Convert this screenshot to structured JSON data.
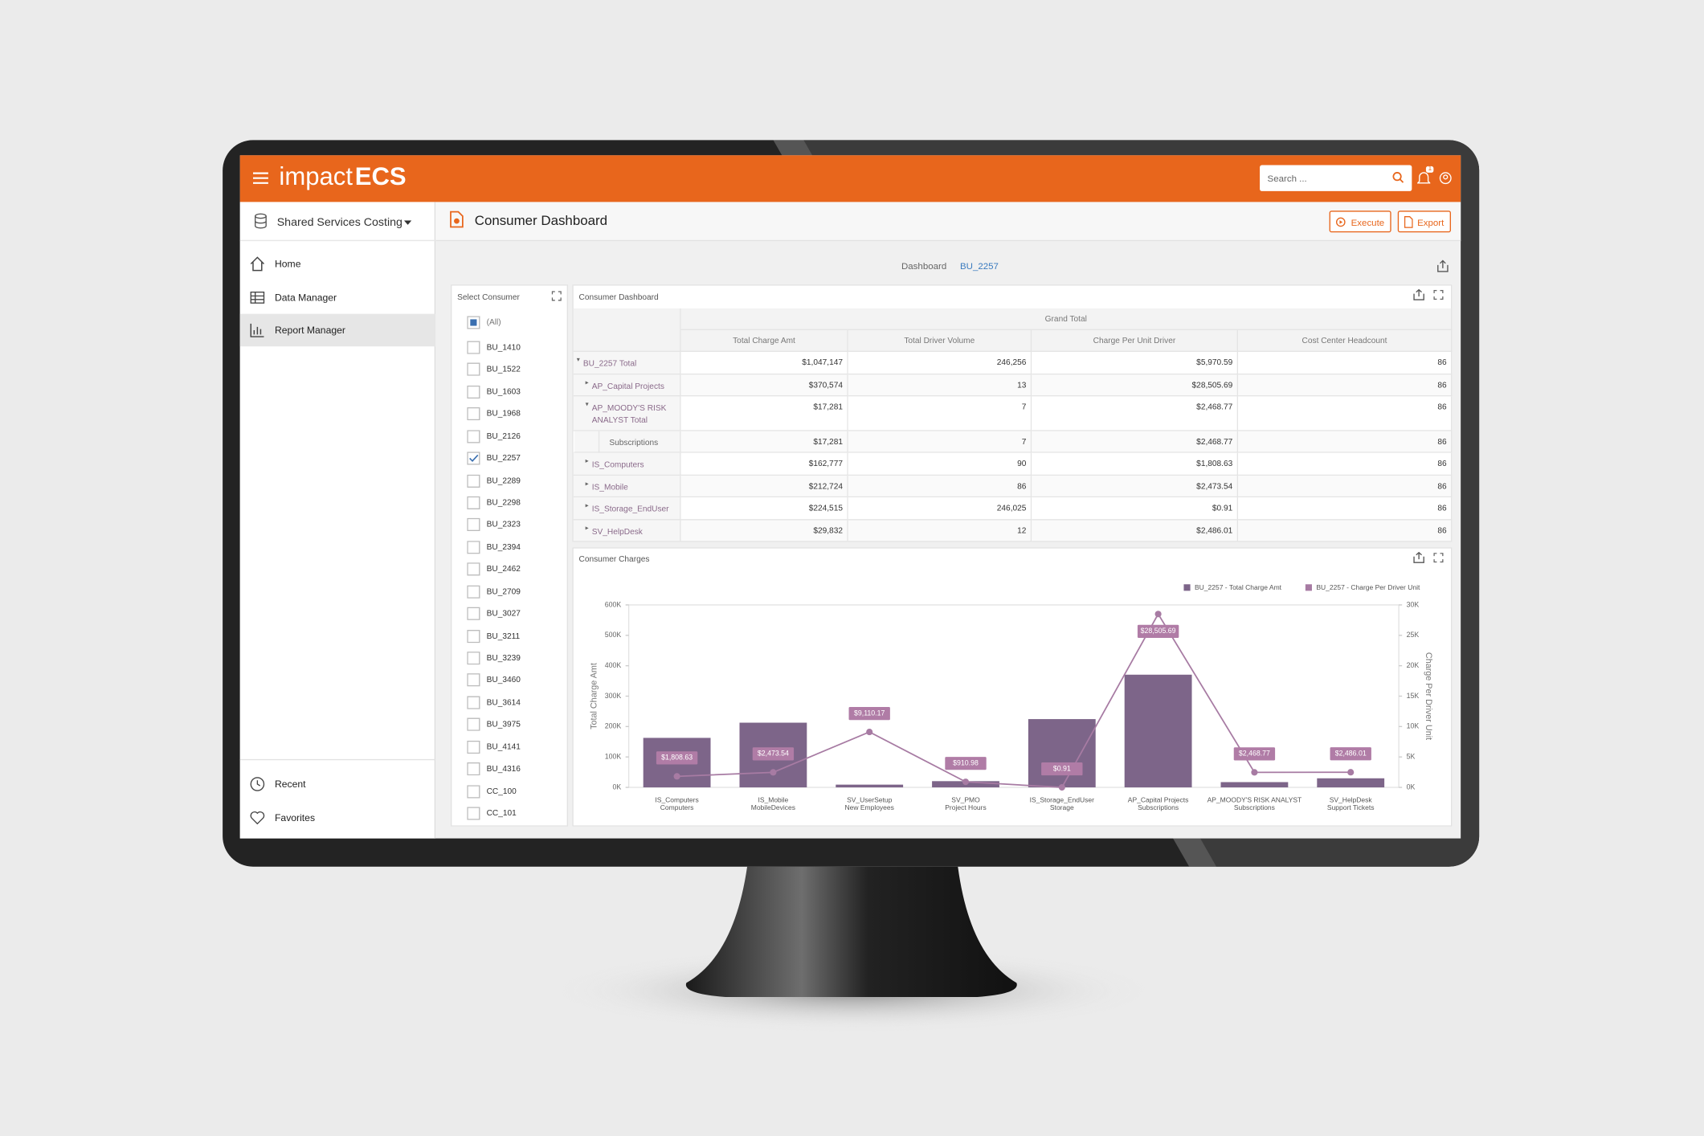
{
  "header": {
    "brand_light": "impact",
    "brand_bold": "ECS",
    "search_placeholder": "Search ...",
    "notification_count": 1
  },
  "sidebar": {
    "workspace": "Shared Services Costing",
    "nav": [
      {
        "label": "Home",
        "active": false
      },
      {
        "label": "Data Manager",
        "active": false
      },
      {
        "label": "Report Manager",
        "active": true
      }
    ],
    "bottom_nav": [
      "Recent",
      "Favorites"
    ]
  },
  "page": {
    "title": "Consumer Dashboard",
    "actions": [
      "Execute",
      "Export"
    ],
    "breadcrumb": {
      "label": "Dashboard",
      "value": "BU_2257"
    }
  },
  "consumer_filter": {
    "title": "Select Consumer",
    "items": [
      {
        "label": "(All)",
        "state": "indeterminate"
      },
      {
        "label": "BU_1410",
        "state": "unchecked"
      },
      {
        "label": "BU_1522",
        "state": "unchecked"
      },
      {
        "label": "BU_1603",
        "state": "unchecked"
      },
      {
        "label": "BU_1968",
        "state": "unchecked"
      },
      {
        "label": "BU_2126",
        "state": "unchecked"
      },
      {
        "label": "BU_2257",
        "state": "checked"
      },
      {
        "label": "BU_2289",
        "state": "unchecked"
      },
      {
        "label": "BU_2298",
        "state": "unchecked"
      },
      {
        "label": "BU_2323",
        "state": "unchecked"
      },
      {
        "label": "BU_2394",
        "state": "unchecked"
      },
      {
        "label": "BU_2462",
        "state": "unchecked"
      },
      {
        "label": "BU_2709",
        "state": "unchecked"
      },
      {
        "label": "BU_3027",
        "state": "unchecked"
      },
      {
        "label": "BU_3211",
        "state": "unchecked"
      },
      {
        "label": "BU_3239",
        "state": "unchecked"
      },
      {
        "label": "BU_3460",
        "state": "unchecked"
      },
      {
        "label": "BU_3614",
        "state": "unchecked"
      },
      {
        "label": "BU_3975",
        "state": "unchecked"
      },
      {
        "label": "BU_4141",
        "state": "unchecked"
      },
      {
        "label": "BU_4316",
        "state": "unchecked"
      },
      {
        "label": "CC_100",
        "state": "unchecked"
      },
      {
        "label": "CC_101",
        "state": "unchecked"
      }
    ]
  },
  "pivot": {
    "title": "Consumer Dashboard",
    "column_group": "Grand Total",
    "columns": [
      "Total Charge Amt",
      "Total Driver Volume",
      "Charge Per Unit Driver",
      "Cost Center Headcount"
    ],
    "rows": [
      {
        "label": "BU_2257 Total",
        "cells": [
          "$1,047,147",
          "246,256",
          "$5,970.59",
          "86"
        ]
      },
      {
        "label": "AP_Capital Projects",
        "cells": [
          "$370,574",
          "13",
          "$28,505.69",
          "86"
        ]
      },
      {
        "label": "AP_MOODY'S RISK ANALYST Total",
        "cells": [
          "$17,281",
          "7",
          "$2,468.77",
          "86"
        ]
      },
      {
        "label": "Subscriptions",
        "cells": [
          "$17,281",
          "7",
          "$2,468.77",
          "86"
        ]
      },
      {
        "label": "IS_Computers",
        "cells": [
          "$162,777",
          "90",
          "$1,808.63",
          "86"
        ]
      },
      {
        "label": "IS_Mobile",
        "cells": [
          "$212,724",
          "86",
          "$2,473.54",
          "86"
        ]
      },
      {
        "label": "IS_Storage_EndUser",
        "cells": [
          "$224,515",
          "246,025",
          "$0.91",
          "86"
        ]
      },
      {
        "label": "SV_HelpDesk",
        "cells": [
          "$29,832",
          "12",
          "$2,486.01",
          "86"
        ]
      }
    ]
  },
  "chart_data": {
    "type": "combo",
    "title": "Consumer Charges",
    "categories": [
      [
        "IS_Computers",
        "Computers"
      ],
      [
        "IS_Mobile",
        "MobileDevices"
      ],
      [
        "SV_UserSetup",
        "New Employees"
      ],
      [
        "SV_PMO",
        "Project Hours"
      ],
      [
        "IS_Storage_EndUser",
        "Storage"
      ],
      [
        "AP_Capital Projects",
        "Subscriptions"
      ],
      [
        "AP_MOODY'S RISK ANALYST",
        "Subscriptions"
      ],
      [
        "SV_HelpDesk",
        "Support Tickets"
      ]
    ],
    "series": [
      {
        "name": "BU_2257 - Total Charge Amt",
        "type": "bar",
        "color": "#7d6589",
        "values": [
          162777,
          212724,
          9000,
          20444,
          224515,
          370574,
          17281,
          29832
        ]
      },
      {
        "name": "BU_2257 - Charge Per Driver Unit",
        "type": "line",
        "axis": "y2",
        "color": "#a77ba3",
        "values": [
          1808.63,
          2473.54,
          9110.17,
          910.98,
          0.91,
          28505.69,
          2468.77,
          2486.01
        ],
        "value_labels": [
          "$1,808.63",
          "$2,473.54",
          "$9,110.17",
          "$910.98",
          "$0.91",
          "$28,505.69",
          "$2,468.77",
          "$2,486.01"
        ]
      }
    ],
    "ylabel": "Total Charge Amt",
    "y2label": "Charge Per Driver Unit",
    "ylim": [
      0,
      600000
    ],
    "yticks": [
      {
        "value": 0,
        "label": "0K"
      },
      {
        "value": 100000,
        "label": "100K"
      },
      {
        "value": 200000,
        "label": "200K"
      },
      {
        "value": 300000,
        "label": "300K"
      },
      {
        "value": 400000,
        "label": "400K"
      },
      {
        "value": 500000,
        "label": "500K"
      },
      {
        "value": 600000,
        "label": "600K"
      }
    ],
    "y2lim": [
      0,
      30000
    ],
    "y2ticks": [
      {
        "value": 0,
        "label": "0K"
      },
      {
        "value": 5000,
        "label": "5K"
      },
      {
        "value": 10000,
        "label": "10K"
      },
      {
        "value": 15000,
        "label": "15K"
      },
      {
        "value": 20000,
        "label": "20K"
      },
      {
        "value": 25000,
        "label": "25K"
      },
      {
        "value": 30000,
        "label": "30K"
      }
    ],
    "grid": false,
    "legend": "top-right"
  }
}
